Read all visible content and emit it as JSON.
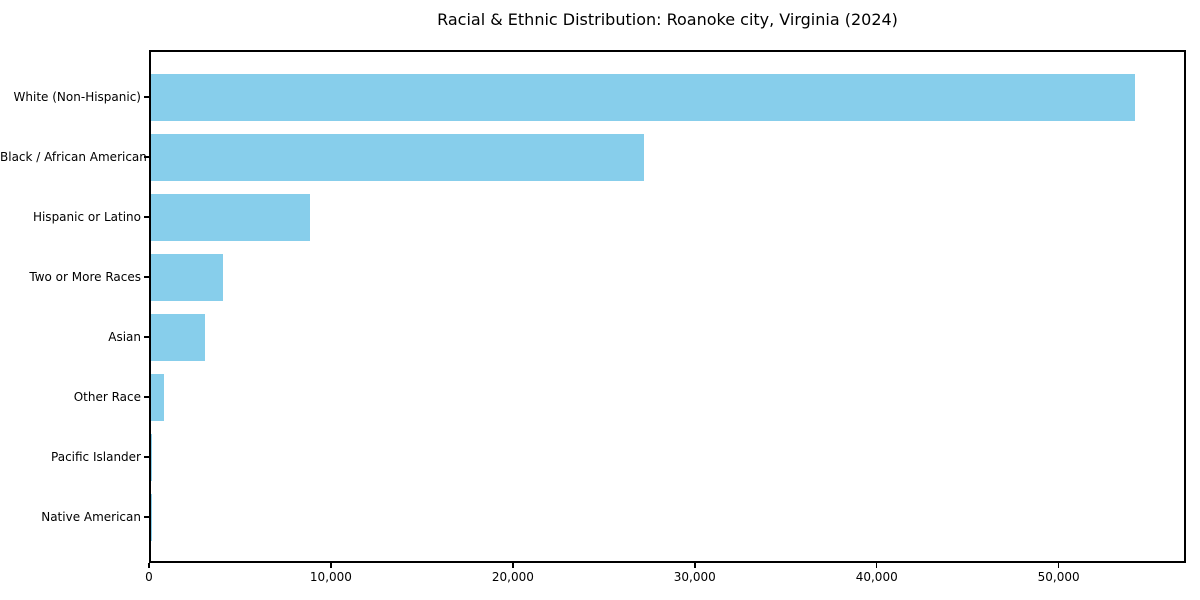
{
  "chart_data": {
    "type": "bar",
    "orientation": "horizontal",
    "title": "Racial & Ethnic Distribution: Roanoke city, Virginia (2024)",
    "categories": [
      "White (Non-Hispanic)",
      "Black / African American",
      "Hispanic or Latino",
      "Two or More Races",
      "Asian",
      "Other Race",
      "Pacific Islander",
      "Native American"
    ],
    "values": [
      54300,
      27200,
      8800,
      4000,
      3000,
      700,
      50,
      30
    ],
    "xlabel": "",
    "ylabel": "",
    "xlim": [
      0,
      57000
    ],
    "x_ticks": [
      0,
      10000,
      20000,
      30000,
      40000,
      50000
    ],
    "x_tick_labels": [
      "0",
      "10,000",
      "20,000",
      "30,000",
      "40,000",
      "50,000"
    ],
    "bar_color": "#87CEEB",
    "background_color": "#ffffff",
    "axis_color": "#000000",
    "text_color": "#000000",
    "grid": false,
    "legend": null
  }
}
